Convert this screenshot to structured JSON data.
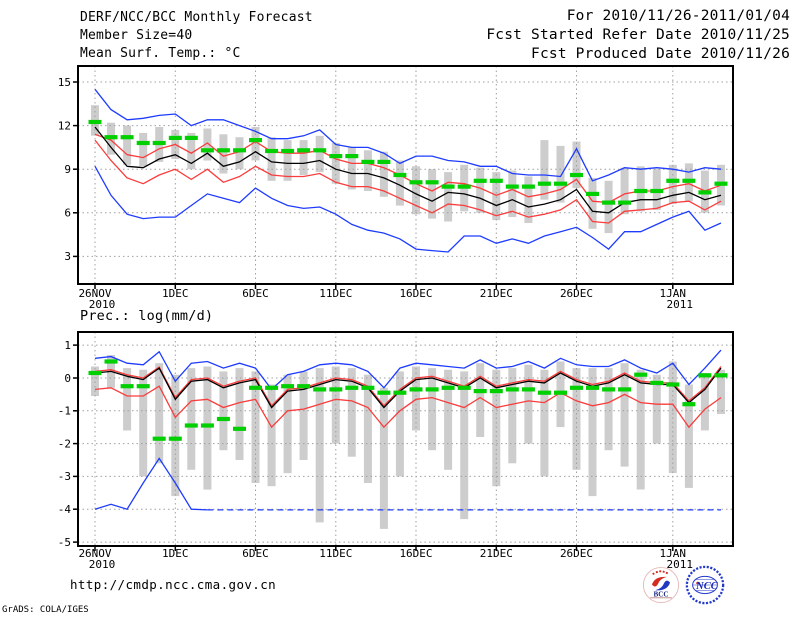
{
  "header": {
    "left": [
      "DERF/NCC/BCC Monthly Forecast",
      "Member Size=40",
      "Mean Surf. Temp.: °C"
    ],
    "right": [
      "For 2010/11/26-2011/01/04",
      "Fcst Started Refer Date 2010/11/25",
      "Fcst Produced Date 2010/11/26"
    ]
  },
  "footer": {
    "url": "http://cmdp.ncc.cma.gov.cn",
    "credit": "GrADS: COLA/IGES",
    "logos": [
      {
        "caption": "BCC"
      },
      {
        "caption": "NCC"
      }
    ]
  },
  "colors": {
    "blue": "#1e3cff",
    "red": "#fa3c3c",
    "black": "#000000",
    "green": "#00d000",
    "bar_grey": "#cdcdcd",
    "grid": "#a0a0a0",
    "frame": "#000000",
    "url_green": "#0c6b52",
    "logo_blue": "#2238c0",
    "logo_red": "#d42a20"
  },
  "chart_data": [
    {
      "id": "temp",
      "type": "line",
      "title": "Mean Surf. Temp.: °C",
      "xlabel": "",
      "ylabel": "°C",
      "grid": true,
      "legend": "none",
      "days": 40,
      "ylim": [
        1.1,
        16.1
      ],
      "y_ticks": [
        15,
        12,
        9,
        6,
        3
      ],
      "x_ticks": [
        {
          "day": 1,
          "label": "26NOV",
          "year": "2010"
        },
        {
          "day": 6,
          "label": "1DEC"
        },
        {
          "day": 11,
          "label": "6DEC"
        },
        {
          "day": 16,
          "label": "11DEC"
        },
        {
          "day": 21,
          "label": "16DEC"
        },
        {
          "day": 26,
          "label": "21DEC"
        },
        {
          "day": 31,
          "label": "26DEC"
        },
        {
          "day": 37,
          "label": "1JAN",
          "year": "2011"
        }
      ],
      "series": [
        {
          "name": "max",
          "color": "blue",
          "values": [
            14.5,
            13.1,
            12.4,
            12.5,
            12.7,
            12.8,
            12.0,
            12.4,
            12.4,
            12.0,
            11.6,
            11.1,
            11.1,
            11.3,
            11.7,
            10.7,
            10.5,
            10.5,
            10.1,
            9.4,
            9.9,
            9.9,
            9.6,
            9.5,
            9.2,
            9.2,
            8.7,
            8.6,
            8.6,
            8.5,
            10.4,
            8.2,
            8.6,
            9.1,
            9.0,
            9.1,
            9.0,
            8.8,
            9.1,
            9.0
          ]
        },
        {
          "name": "mean-plus-std",
          "color": "red",
          "values": [
            11.4,
            11.0,
            10.0,
            9.8,
            10.4,
            10.7,
            10.1,
            10.8,
            9.9,
            10.2,
            10.9,
            10.2,
            10.1,
            10.1,
            10.3,
            9.7,
            9.4,
            9.4,
            9.1,
            8.6,
            8.0,
            7.5,
            8.1,
            8.0,
            7.7,
            7.2,
            7.6,
            7.1,
            7.3,
            7.6,
            8.3,
            6.8,
            6.7,
            7.3,
            7.5,
            7.5,
            7.8,
            8.0,
            7.5,
            7.9
          ]
        },
        {
          "name": "ensemble-mean",
          "color": "black",
          "values": [
            11.9,
            10.5,
            9.2,
            9.1,
            9.7,
            10.0,
            9.4,
            10.1,
            9.2,
            9.5,
            10.2,
            9.5,
            9.4,
            9.4,
            9.6,
            9.0,
            8.7,
            8.7,
            8.4,
            7.9,
            7.3,
            6.8,
            7.4,
            7.3,
            7.0,
            6.5,
            6.9,
            6.4,
            6.6,
            6.9,
            7.6,
            6.1,
            6.0,
            6.7,
            6.9,
            6.9,
            7.2,
            7.4,
            6.9,
            7.2
          ]
        },
        {
          "name": "mean-minus-std",
          "color": "red",
          "values": [
            11.0,
            9.6,
            8.4,
            8.0,
            8.6,
            9.0,
            8.3,
            9.0,
            8.1,
            8.5,
            9.2,
            8.6,
            8.5,
            8.5,
            8.7,
            8.1,
            7.8,
            7.8,
            7.5,
            7.0,
            6.5,
            6.0,
            6.6,
            6.5,
            6.2,
            5.8,
            6.1,
            5.7,
            5.9,
            6.2,
            6.9,
            5.4,
            5.3,
            6.1,
            6.2,
            6.3,
            6.7,
            6.8,
            6.2,
            6.8
          ]
        },
        {
          "name": "min",
          "color": "blue",
          "values": [
            9.2,
            7.2,
            5.9,
            5.6,
            5.7,
            5.7,
            6.5,
            7.3,
            7.0,
            6.7,
            7.7,
            7.0,
            6.5,
            6.3,
            6.4,
            5.9,
            5.2,
            4.8,
            4.6,
            4.2,
            3.5,
            3.4,
            3.3,
            4.4,
            4.4,
            3.9,
            4.2,
            3.9,
            4.4,
            4.7,
            5.0,
            4.3,
            3.5,
            4.7,
            4.7,
            5.2,
            5.7,
            6.1,
            4.8,
            5.3
          ]
        },
        {
          "name": "observation-climatology",
          "color": "green",
          "style": "dash-mark",
          "values": [
            12.25,
            11.2,
            11.2,
            10.8,
            10.8,
            11.15,
            11.15,
            10.3,
            10.3,
            10.3,
            11.0,
            10.25,
            10.25,
            10.3,
            10.3,
            9.9,
            9.9,
            9.5,
            9.5,
            8.6,
            8.1,
            8.1,
            7.8,
            7.8,
            8.2,
            8.2,
            7.8,
            7.8,
            8.0,
            8.0,
            8.6,
            7.3,
            6.7,
            6.7,
            7.5,
            7.5,
            8.2,
            8.2,
            7.4,
            8.0
          ]
        }
      ],
      "bars": {
        "name": "member-spread-bar",
        "top": [
          13.4,
          12.2,
          12.0,
          11.5,
          11.9,
          11.7,
          11.5,
          11.8,
          11.4,
          11.2,
          11.9,
          11.2,
          11.0,
          11.0,
          11.3,
          10.8,
          10.5,
          10.3,
          10.2,
          9.6,
          9.2,
          9.0,
          8.8,
          9.3,
          9.1,
          8.8,
          8.9,
          8.5,
          11.0,
          10.6,
          10.9,
          8.4,
          8.2,
          9.1,
          9.2,
          9.0,
          9.3,
          9.4,
          8.9,
          9.3
        ],
        "bottom": [
          11.3,
          10.0,
          9.3,
          9.2,
          9.5,
          9.7,
          9.0,
          9.6,
          8.7,
          9.0,
          9.6,
          8.2,
          8.2,
          8.6,
          8.8,
          8.0,
          7.6,
          7.5,
          7.1,
          6.5,
          5.9,
          5.6,
          5.4,
          6.1,
          6.0,
          5.5,
          5.7,
          5.3,
          6.9,
          6.7,
          7.7,
          4.9,
          4.6,
          5.9,
          6.1,
          6.2,
          6.6,
          6.8,
          6.0,
          6.5
        ]
      }
    },
    {
      "id": "prec",
      "type": "line",
      "title": "Prec.: log(mm/d)",
      "xlabel": "",
      "ylabel": "log(mm/d)",
      "grid": true,
      "legend": "none",
      "days": 40,
      "ylim": [
        -5.12,
        1.4
      ],
      "y_ticks": [
        1,
        0,
        -1,
        -2,
        -3,
        -4,
        -5
      ],
      "x_ticks": [
        {
          "day": 1,
          "label": "26NOV",
          "year": "2010"
        },
        {
          "day": 6,
          "label": "1DEC"
        },
        {
          "day": 11,
          "label": "6DEC"
        },
        {
          "day": 16,
          "label": "11DEC"
        },
        {
          "day": 21,
          "label": "16DEC"
        },
        {
          "day": 26,
          "label": "21DEC"
        },
        {
          "day": 31,
          "label": "26DEC"
        },
        {
          "day": 37,
          "label": "1JAN",
          "year": "2011"
        }
      ],
      "series": [
        {
          "name": "max",
          "color": "blue",
          "values": [
            0.6,
            0.65,
            0.45,
            0.4,
            0.8,
            -0.1,
            0.45,
            0.5,
            0.3,
            0.45,
            0.3,
            -0.35,
            0.1,
            0.2,
            0.4,
            0.45,
            0.4,
            0.2,
            -0.3,
            0.3,
            0.45,
            0.4,
            0.35,
            0.3,
            0.55,
            0.3,
            0.35,
            0.5,
            0.3,
            0.6,
            0.4,
            0.35,
            0.35,
            0.55,
            0.3,
            0.15,
            0.45,
            -0.2,
            0.3,
            0.85
          ]
        },
        {
          "name": "mean-plus-std",
          "color": "red",
          "values": [
            0.2,
            0.25,
            0.1,
            0.0,
            0.33,
            -0.6,
            -0.05,
            0.0,
            -0.25,
            -0.1,
            0.0,
            -0.85,
            -0.35,
            -0.3,
            -0.15,
            0.0,
            -0.05,
            -0.25,
            -0.85,
            -0.35,
            0.0,
            0.05,
            -0.1,
            -0.25,
            0.05,
            -0.25,
            -0.15,
            -0.05,
            -0.1,
            0.2,
            -0.05,
            -0.2,
            -0.1,
            0.15,
            -0.1,
            -0.15,
            -0.15,
            -0.7,
            -0.3,
            0.35
          ]
        },
        {
          "name": "ensemble-mean",
          "color": "black",
          "values": [
            0.15,
            0.2,
            0.05,
            -0.05,
            0.3,
            -0.65,
            -0.1,
            -0.05,
            -0.3,
            -0.15,
            -0.05,
            -0.9,
            -0.4,
            -0.35,
            -0.2,
            -0.05,
            -0.1,
            -0.3,
            -0.9,
            -0.4,
            -0.05,
            0.0,
            -0.15,
            -0.3,
            0.0,
            -0.3,
            -0.2,
            -0.1,
            -0.15,
            0.15,
            -0.1,
            -0.25,
            -0.15,
            0.1,
            -0.15,
            -0.2,
            -0.2,
            -0.75,
            -0.35,
            0.3
          ]
        },
        {
          "name": "mean-minus-std",
          "color": "red",
          "values": [
            -0.35,
            -0.3,
            -0.55,
            -0.55,
            -0.25,
            -1.2,
            -0.7,
            -0.65,
            -0.9,
            -0.75,
            -0.65,
            -1.5,
            -1.0,
            -0.95,
            -0.8,
            -0.65,
            -0.7,
            -0.9,
            -1.5,
            -1.0,
            -0.65,
            -0.6,
            -0.75,
            -0.9,
            -0.6,
            -0.9,
            -0.8,
            -0.7,
            -0.75,
            -0.45,
            -0.7,
            -0.85,
            -0.75,
            -0.5,
            -0.75,
            -0.8,
            -0.8,
            -1.5,
            -0.95,
            -0.6
          ]
        },
        {
          "name": "min",
          "color": "blue",
          "dash_from": 7,
          "values": [
            -4.0,
            -3.85,
            -4.0,
            -3.2,
            -2.45,
            -3.2,
            -4.0,
            -4.02,
            -4.02,
            -4.02,
            -4.02,
            -4.02,
            -4.02,
            -4.02,
            -4.02,
            -4.02,
            -4.02,
            -4.02,
            -4.02,
            -4.02,
            -4.02,
            -4.02,
            -4.02,
            -4.02,
            -4.02,
            -4.02,
            -4.02,
            -4.02,
            -4.02,
            -4.02,
            -4.02,
            -4.02,
            -4.02,
            -4.02,
            -4.02,
            -4.02,
            -4.02,
            -4.02,
            -4.02,
            -4.02
          ]
        },
        {
          "name": "observation-climatology",
          "color": "green",
          "style": "dash-mark",
          "values": [
            0.15,
            0.5,
            -0.25,
            -0.25,
            -1.85,
            -1.85,
            -1.45,
            -1.45,
            -1.25,
            -1.55,
            -0.3,
            -0.3,
            -0.25,
            -0.25,
            -0.35,
            -0.35,
            -0.3,
            -0.3,
            -0.45,
            -0.45,
            -0.35,
            -0.35,
            -0.3,
            -0.3,
            -0.4,
            -0.4,
            -0.35,
            -0.35,
            -0.45,
            -0.45,
            -0.3,
            -0.3,
            -0.35,
            -0.35,
            0.1,
            -0.15,
            -0.2,
            -0.8,
            0.08,
            0.08
          ]
        }
      ],
      "bars": {
        "name": "member-spread-bar",
        "top": [
          0.35,
          0.7,
          0.3,
          0.25,
          0.45,
          0.1,
          0.3,
          0.35,
          0.2,
          0.3,
          0.2,
          -0.2,
          0.1,
          0.2,
          0.3,
          0.35,
          0.3,
          0.1,
          -0.3,
          0.2,
          0.35,
          0.3,
          0.25,
          0.2,
          0.45,
          0.25,
          0.3,
          0.4,
          0.25,
          0.5,
          0.3,
          0.3,
          0.3,
          0.45,
          0.25,
          0.1,
          0.5,
          -0.2,
          0.15,
          0.25
        ],
        "bottom": [
          -0.55,
          -0.3,
          -1.6,
          -3.0,
          -2.6,
          -3.6,
          -2.8,
          -3.4,
          -2.2,
          -2.5,
          -3.2,
          -3.3,
          -2.9,
          -2.5,
          -4.4,
          -2.0,
          -2.4,
          -3.2,
          -4.6,
          -3.0,
          -1.6,
          -2.2,
          -2.8,
          -4.3,
          -1.8,
          -3.3,
          -2.6,
          -2.0,
          -3.0,
          -1.5,
          -2.8,
          -3.6,
          -2.2,
          -2.7,
          -3.4,
          -2.0,
          -2.9,
          -3.35,
          -1.6,
          -1.1
        ]
      }
    }
  ]
}
